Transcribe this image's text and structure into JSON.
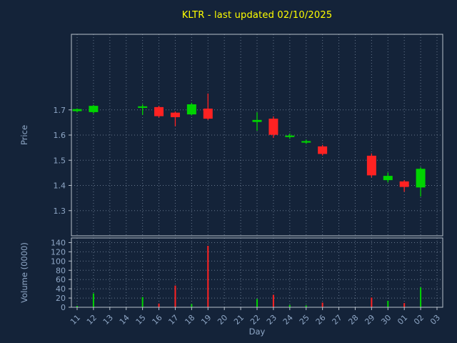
{
  "title": {
    "text": "KLTR - last updated 02/10/2025",
    "color": "#ffff00"
  },
  "colors": {
    "background": "#142339",
    "axis_text": "#8fa7c6",
    "grid": "#7b8ba1",
    "spine": "#b9c2cc",
    "up": "#00d400",
    "down": "#ff2222"
  },
  "chart_data": [
    {
      "type": "candlestick",
      "panel": "price",
      "title": "KLTR - last updated 02/10/2025",
      "xlabel": "Day",
      "ylabel": "Price",
      "x_ticks": [
        "11",
        "12",
        "13",
        "14",
        "15",
        "16",
        "17",
        "18",
        "19",
        "20",
        "21",
        "22",
        "23",
        "24",
        "25",
        "26",
        "27",
        "28",
        "29",
        "30",
        "01",
        "02",
        "03"
      ],
      "ylim": [
        1.2,
        2.0
      ],
      "y_ticks": [
        1.3,
        1.4,
        1.5,
        1.6,
        1.7
      ],
      "grid": true,
      "legend": false,
      "candles": [
        {
          "i": 0,
          "day": "11",
          "open": 1.695,
          "high": 1.706,
          "low": 1.69,
          "close": 1.703
        },
        {
          "i": 1,
          "day": "12",
          "open": 1.691,
          "high": 1.72,
          "low": 1.685,
          "close": 1.716
        },
        {
          "i": 4,
          "day": "15",
          "open": 1.708,
          "high": 1.722,
          "low": 1.68,
          "close": 1.714
        },
        {
          "i": 5,
          "day": "16",
          "open": 1.711,
          "high": 1.716,
          "low": 1.67,
          "close": 1.675
        },
        {
          "i": 6,
          "day": "17",
          "open": 1.689,
          "high": 1.694,
          "low": 1.635,
          "close": 1.671
        },
        {
          "i": 7,
          "day": "18",
          "open": 1.682,
          "high": 1.728,
          "low": 1.678,
          "close": 1.722
        },
        {
          "i": 8,
          "day": "19",
          "open": 1.705,
          "high": 1.765,
          "low": 1.66,
          "close": 1.665
        },
        {
          "i": 11,
          "day": "22",
          "open": 1.652,
          "high": 1.69,
          "low": 1.617,
          "close": 1.66
        },
        {
          "i": 12,
          "day": "23",
          "open": 1.665,
          "high": 1.674,
          "low": 1.589,
          "close": 1.601
        },
        {
          "i": 13,
          "day": "24",
          "open": 1.592,
          "high": 1.606,
          "low": 1.585,
          "close": 1.598
        },
        {
          "i": 14,
          "day": "25",
          "open": 1.57,
          "high": 1.582,
          "low": 1.565,
          "close": 1.576
        },
        {
          "i": 15,
          "day": "26",
          "open": 1.555,
          "high": 1.561,
          "low": 1.519,
          "close": 1.525
        },
        {
          "i": 18,
          "day": "29",
          "open": 1.518,
          "high": 1.527,
          "low": 1.432,
          "close": 1.44
        },
        {
          "i": 19,
          "day": "30",
          "open": 1.421,
          "high": 1.451,
          "low": 1.412,
          "close": 1.438
        },
        {
          "i": 20,
          "day": "01",
          "open": 1.416,
          "high": 1.421,
          "low": 1.375,
          "close": 1.394
        },
        {
          "i": 21,
          "day": "02",
          "open": 1.392,
          "high": 1.472,
          "low": 1.356,
          "close": 1.466
        }
      ]
    },
    {
      "type": "bar",
      "panel": "volume",
      "ylabel": "Volume (0000)",
      "ylim": [
        0,
        150
      ],
      "y_ticks": [
        0,
        20,
        40,
        60,
        80,
        100,
        120,
        140
      ],
      "grid": true,
      "values": [
        {
          "i": 0,
          "day": "11",
          "volume": 3,
          "dir": "up"
        },
        {
          "i": 1,
          "day": "12",
          "volume": 30,
          "dir": "up"
        },
        {
          "i": 4,
          "day": "15",
          "volume": 22,
          "dir": "up"
        },
        {
          "i": 5,
          "day": "16",
          "volume": 8,
          "dir": "down"
        },
        {
          "i": 6,
          "day": "17",
          "volume": 47,
          "dir": "down"
        },
        {
          "i": 7,
          "day": "18",
          "volume": 7,
          "dir": "up"
        },
        {
          "i": 8,
          "day": "19",
          "volume": 133,
          "dir": "down"
        },
        {
          "i": 11,
          "day": "22",
          "volume": 18,
          "dir": "up"
        },
        {
          "i": 12,
          "day": "23",
          "volume": 27,
          "dir": "down"
        },
        {
          "i": 13,
          "day": "24",
          "volume": 5,
          "dir": "up"
        },
        {
          "i": 14,
          "day": "25",
          "volume": 4,
          "dir": "up"
        },
        {
          "i": 15,
          "day": "26",
          "volume": 10,
          "dir": "down"
        },
        {
          "i": 18,
          "day": "29",
          "volume": 21,
          "dir": "down"
        },
        {
          "i": 19,
          "day": "30",
          "volume": 14,
          "dir": "up"
        },
        {
          "i": 20,
          "day": "01",
          "volume": 9,
          "dir": "down"
        },
        {
          "i": 21,
          "day": "02",
          "volume": 43,
          "dir": "up"
        }
      ]
    }
  ]
}
